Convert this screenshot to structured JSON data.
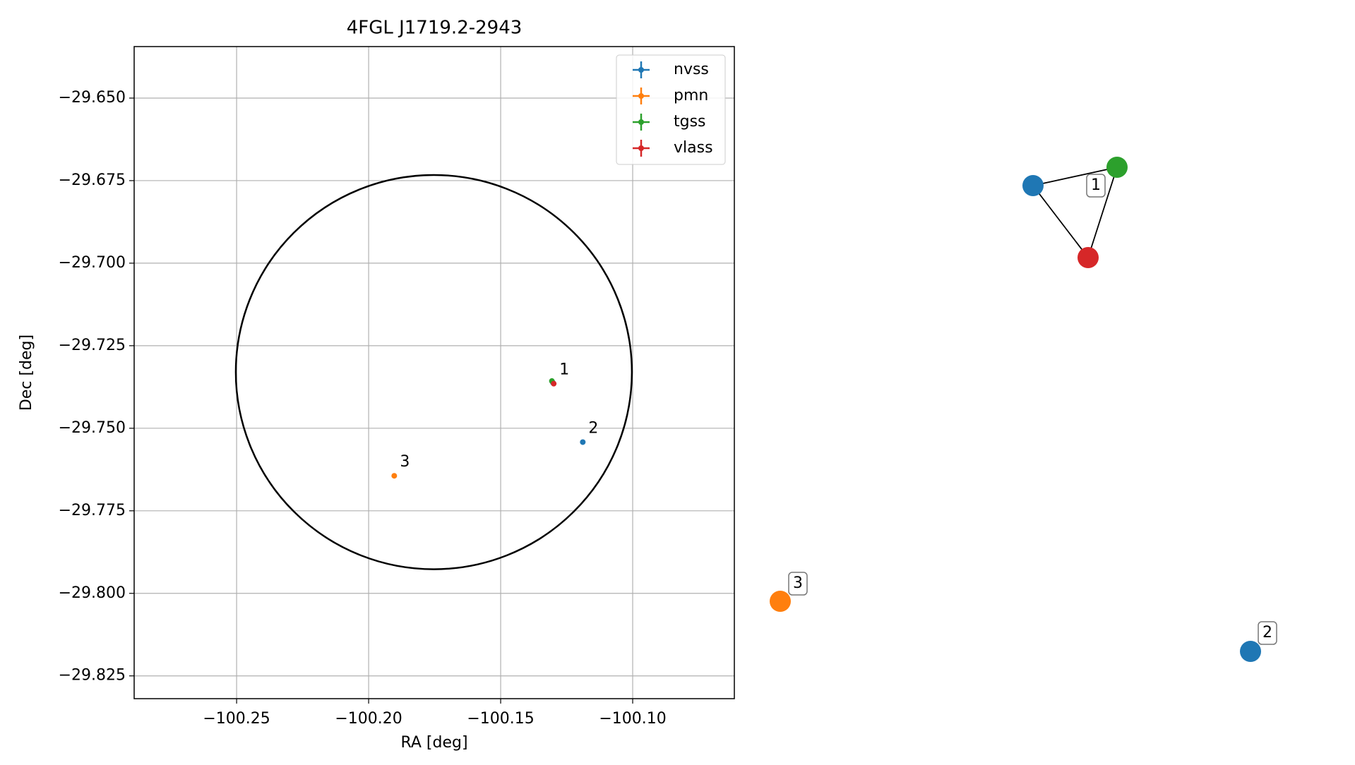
{
  "chart_data": {
    "type": "scatter",
    "title": "4FGL J1719.2-2943",
    "x_label": "RA [deg]",
    "y_label": "Dec [deg]",
    "xlim": [
      -100.2888,
      -100.0615
    ],
    "ylim": [
      -29.8319,
      -29.6344
    ],
    "xticks": [
      {
        "value": -100.25,
        "label": "−100.25"
      },
      {
        "value": -100.2,
        "label": "−100.20"
      },
      {
        "value": -100.15,
        "label": "−100.15"
      },
      {
        "value": -100.1,
        "label": "−100.10"
      }
    ],
    "yticks": [
      {
        "value": -29.65,
        "label": "−29.650"
      },
      {
        "value": -29.675,
        "label": "−29.675"
      },
      {
        "value": -29.7,
        "label": "−29.700"
      },
      {
        "value": -29.725,
        "label": "−29.725"
      },
      {
        "value": -29.75,
        "label": "−29.750"
      },
      {
        "value": -29.775,
        "label": "−29.775"
      },
      {
        "value": -29.8,
        "label": "−29.800"
      },
      {
        "value": -29.825,
        "label": "−29.825"
      }
    ],
    "grid": true,
    "legend": "upper right",
    "series": [
      {
        "name": "nvss",
        "color": "#1f77b4",
        "x": [
          -100.1302,
          -100.1189
        ],
        "values": [
          -29.7362,
          -29.7542
        ]
      },
      {
        "name": "pmn",
        "color": "#ff7f0e",
        "x": [
          -100.1903
        ],
        "values": [
          -29.7644
        ]
      },
      {
        "name": "tgss",
        "color": "#2ca02c",
        "x": [
          -100.1306
        ],
        "values": [
          -29.7357
        ]
      },
      {
        "name": "vlass",
        "color": "#d62728",
        "x": [
          -100.1299
        ],
        "values": [
          -29.7365
        ]
      }
    ],
    "ellipse": {
      "center_ra": -100.1753,
      "center_dec": -29.733,
      "ra_radius": 0.075,
      "dec_radius": 0.0597
    },
    "annotations": [
      {
        "text": "1",
        "x": -100.1299,
        "y": -29.7365
      },
      {
        "text": "2",
        "x": -100.1189,
        "y": -29.7542
      },
      {
        "text": "3",
        "x": -100.1903,
        "y": -29.7644
      }
    ]
  },
  "graph": {
    "nodes": [
      {
        "catalog": "nvss",
        "group": "1"
      },
      {
        "catalog": "tgss",
        "group": "1"
      },
      {
        "catalog": "vlass",
        "group": "1"
      },
      {
        "catalog": "pmn",
        "group": "3"
      },
      {
        "catalog": "nvss",
        "group": "2"
      }
    ],
    "edges": [
      [
        0,
        1
      ],
      [
        0,
        2
      ],
      [
        1,
        2
      ]
    ]
  }
}
